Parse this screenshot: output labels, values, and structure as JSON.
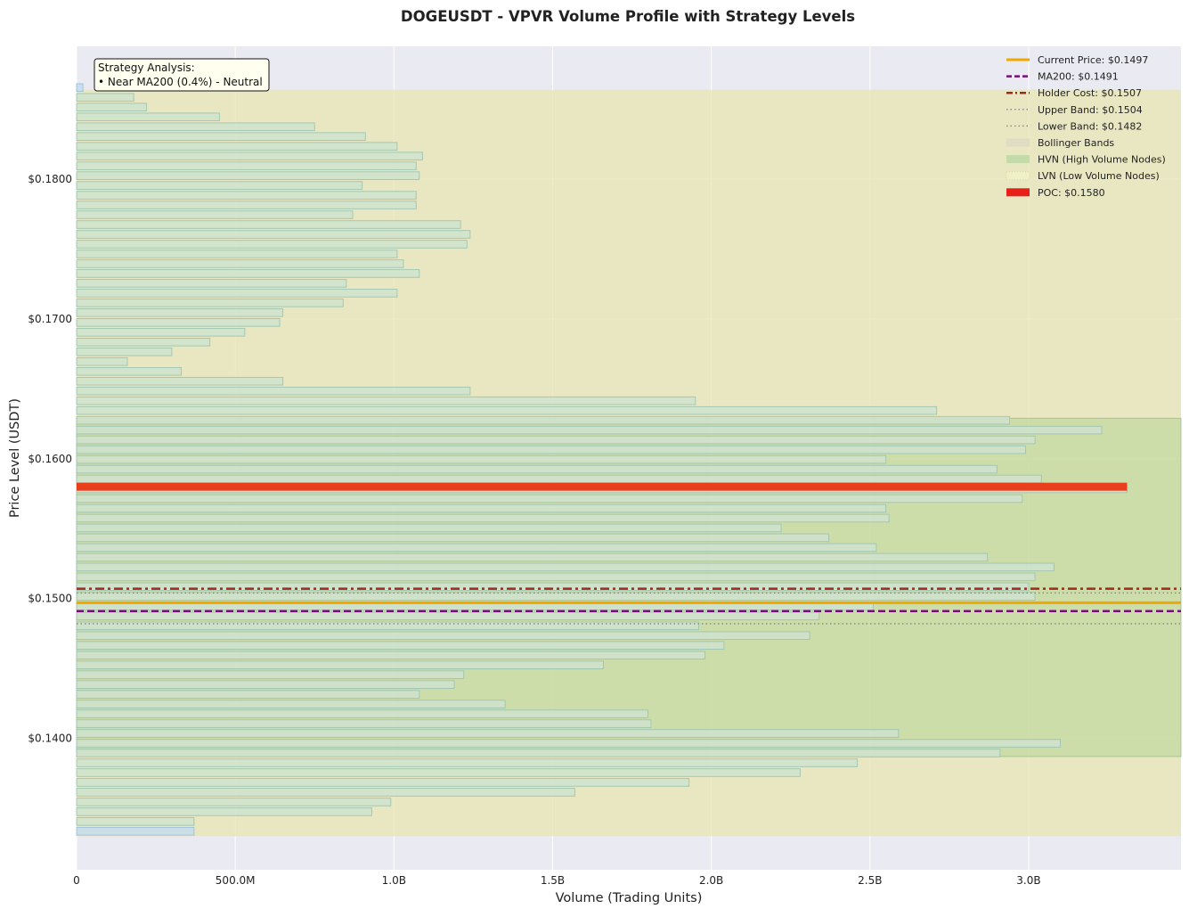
{
  "chart_data": {
    "type": "bar",
    "orientation": "horizontal",
    "title": "DOGEUSDT - VPVR Volume Profile with Strategy Levels",
    "xlabel": "Volume (Trading Units)",
    "ylabel": "Price Level (USDT)",
    "xlim": [
      0,
      3480000000
    ],
    "ylim": [
      0.1306,
      0.1895
    ],
    "x_ticks": [
      {
        "value": 0,
        "label": "0"
      },
      {
        "value": 500000000,
        "label": "500.0M"
      },
      {
        "value": 1000000000,
        "label": "1.0B"
      },
      {
        "value": 1500000000,
        "label": "1.5B"
      },
      {
        "value": 2000000000,
        "label": "2.0B"
      },
      {
        "value": 2500000000,
        "label": "2.5B"
      },
      {
        "value": 3000000000,
        "label": "3.0B"
      }
    ],
    "y_ticks": [
      {
        "value": 0.14,
        "label": "$0.1400"
      },
      {
        "value": 0.15,
        "label": "$0.1500"
      },
      {
        "value": 0.16,
        "label": "$0.1600"
      },
      {
        "value": 0.17,
        "label": "$0.1700"
      },
      {
        "value": 0.18,
        "label": "$0.1800"
      }
    ],
    "grid": true,
    "bar_height": 0.00055,
    "volume_bars": [
      {
        "price": 0.13335,
        "volume": 370000000
      },
      {
        "price": 0.13405,
        "volume": 370000000
      },
      {
        "price": 0.13475,
        "volume": 930000000
      },
      {
        "price": 0.13545,
        "volume": 990000000
      },
      {
        "price": 0.13615,
        "volume": 1570000000
      },
      {
        "price": 0.13685,
        "volume": 1930000000
      },
      {
        "price": 0.13755,
        "volume": 2280000000
      },
      {
        "price": 0.13825,
        "volume": 2460000000
      },
      {
        "price": 0.13895,
        "volume": 2910000000
      },
      {
        "price": 0.13965,
        "volume": 3100000000
      },
      {
        "price": 0.14035,
        "volume": 2590000000
      },
      {
        "price": 0.14105,
        "volume": 1810000000
      },
      {
        "price": 0.14175,
        "volume": 1800000000
      },
      {
        "price": 0.14245,
        "volume": 1350000000
      },
      {
        "price": 0.14315,
        "volume": 1080000000
      },
      {
        "price": 0.14385,
        "volume": 1190000000
      },
      {
        "price": 0.14455,
        "volume": 1220000000
      },
      {
        "price": 0.14525,
        "volume": 1660000000
      },
      {
        "price": 0.14595,
        "volume": 1980000000
      },
      {
        "price": 0.14665,
        "volume": 2040000000
      },
      {
        "price": 0.14735,
        "volume": 2310000000
      },
      {
        "price": 0.14805,
        "volume": 1960000000
      },
      {
        "price": 0.14875,
        "volume": 2340000000
      },
      {
        "price": 0.14945,
        "volume": 2510000000
      },
      {
        "price": 0.15015,
        "volume": 3020000000
      },
      {
        "price": 0.15085,
        "volume": 3000000000
      },
      {
        "price": 0.15155,
        "volume": 3020000000
      },
      {
        "price": 0.15225,
        "volume": 3080000000
      },
      {
        "price": 0.15295,
        "volume": 2870000000
      },
      {
        "price": 0.15365,
        "volume": 2520000000
      },
      {
        "price": 0.15435,
        "volume": 2370000000
      },
      {
        "price": 0.15505,
        "volume": 2220000000
      },
      {
        "price": 0.15575,
        "volume": 2560000000
      },
      {
        "price": 0.15645,
        "volume": 2550000000
      },
      {
        "price": 0.15715,
        "volume": 2980000000
      },
      {
        "price": 0.15785,
        "volume": 3310000000
      },
      {
        "price": 0.15855,
        "volume": 3040000000
      },
      {
        "price": 0.15925,
        "volume": 2900000000
      },
      {
        "price": 0.15995,
        "volume": 2550000000
      },
      {
        "price": 0.16065,
        "volume": 2990000000
      },
      {
        "price": 0.16135,
        "volume": 3020000000
      },
      {
        "price": 0.16205,
        "volume": 3230000000
      },
      {
        "price": 0.16275,
        "volume": 2940000000
      },
      {
        "price": 0.16345,
        "volume": 2710000000
      },
      {
        "price": 0.16415,
        "volume": 1950000000
      },
      {
        "price": 0.16485,
        "volume": 1240000000
      },
      {
        "price": 0.16555,
        "volume": 650000000
      },
      {
        "price": 0.16625,
        "volume": 330000000
      },
      {
        "price": 0.16695,
        "volume": 160000000
      },
      {
        "price": 0.16765,
        "volume": 300000000
      },
      {
        "price": 0.16835,
        "volume": 420000000
      },
      {
        "price": 0.16905,
        "volume": 530000000
      },
      {
        "price": 0.16975,
        "volume": 640000000
      },
      {
        "price": 0.17045,
        "volume": 650000000
      },
      {
        "price": 0.17115,
        "volume": 840000000
      },
      {
        "price": 0.17185,
        "volume": 1010000000
      },
      {
        "price": 0.17255,
        "volume": 850000000
      },
      {
        "price": 0.17325,
        "volume": 1080000000
      },
      {
        "price": 0.17395,
        "volume": 1030000000
      },
      {
        "price": 0.17465,
        "volume": 1010000000
      },
      {
        "price": 0.17535,
        "volume": 1230000000
      },
      {
        "price": 0.17605,
        "volume": 1240000000
      },
      {
        "price": 0.17675,
        "volume": 1210000000
      },
      {
        "price": 0.17745,
        "volume": 870000000
      },
      {
        "price": 0.17815,
        "volume": 1070000000
      },
      {
        "price": 0.17885,
        "volume": 1070000000
      },
      {
        "price": 0.17955,
        "volume": 900000000
      },
      {
        "price": 0.18025,
        "volume": 1080000000
      },
      {
        "price": 0.18095,
        "volume": 1070000000
      },
      {
        "price": 0.18165,
        "volume": 1090000000
      },
      {
        "price": 0.18235,
        "volume": 1010000000
      },
      {
        "price": 0.18305,
        "volume": 910000000
      },
      {
        "price": 0.18375,
        "volume": 750000000
      },
      {
        "price": 0.18445,
        "volume": 450000000
      },
      {
        "price": 0.18515,
        "volume": 220000000
      },
      {
        "price": 0.18585,
        "volume": 180000000
      },
      {
        "price": 0.18655,
        "volume": 20000000
      }
    ],
    "lvn_prices": [
      0.13335,
      0.18655
    ],
    "poc": {
      "price": 0.158,
      "volume": 3310000000,
      "color": "#e8401c"
    },
    "hvn_band": {
      "low": 0.1387,
      "high": 0.1629,
      "color": "#a8d08d"
    },
    "bollinger_band": {
      "low": 0.133,
      "high": 0.1864,
      "color": "#e8e6b2"
    },
    "horizontal_levels": [
      {
        "key": "upper_band",
        "price": 0.1504,
        "color": "#8c8c8c",
        "style": "dotted"
      },
      {
        "key": "lower_band",
        "price": 0.1482,
        "color": "#8c8c8c",
        "style": "dotted"
      },
      {
        "key": "holder_cost",
        "price": 0.1507,
        "color": "#9e2a1e",
        "style": "dashdot"
      },
      {
        "key": "current_price",
        "price": 0.1497,
        "color": "#f0a800",
        "style": "solid"
      },
      {
        "key": "ma200",
        "price": 0.1491,
        "color": "#7b0d7b",
        "style": "dashed"
      }
    ],
    "legend_position": "top-right",
    "legend": [
      {
        "label": "Current Price: $0.1497",
        "kind": "line-solid",
        "color": "#f0a800"
      },
      {
        "label": "MA200: $0.1491",
        "kind": "line-dashed",
        "color": "#7b0d7b"
      },
      {
        "label": "Holder Cost: $0.1507",
        "kind": "line-dashdot",
        "color": "#9e2a1e"
      },
      {
        "label": "Upper Band: $0.1504",
        "kind": "line-dotted",
        "color": "#8c8c8c"
      },
      {
        "label": "Lower Band: $0.1482",
        "kind": "line-dotted",
        "color": "#8c8c8c"
      },
      {
        "label": "Bollinger Bands",
        "kind": "patch",
        "color": "#deddc4"
      },
      {
        "label": "HVN (High Volume Nodes)",
        "kind": "patch",
        "color": "#c3dba8"
      },
      {
        "label": "LVN (Low Volume Nodes)",
        "kind": "patch-dotted",
        "color": "#eef0c6"
      },
      {
        "label": "POC: $0.1580",
        "kind": "patch-solid",
        "color": "#e8201c"
      }
    ],
    "annotation": {
      "lines": [
        "Strategy Analysis:",
        "• Near MA200 (0.4%) - Neutral"
      ]
    },
    "colors": {
      "plot_background": "#eaeaf2",
      "bar_fill": "#cfe3cf",
      "bar_stroke": "#9ec4b0",
      "lvn_fill": "#c6dcec",
      "annotation_fill": "#fffff0"
    }
  }
}
